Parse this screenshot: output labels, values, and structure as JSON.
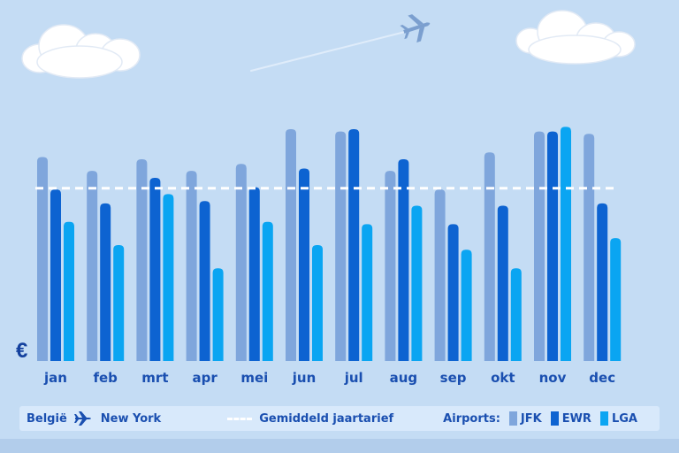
{
  "colors": {
    "background": "#c4dcf4",
    "average_line": "#ffffff",
    "JFK": "#7fa6dc",
    "EWR": "#0d63d1",
    "LGA": "#0aa5f2",
    "text": "#1a4fb0"
  },
  "currency_symbol": "€",
  "legend": {
    "origin": "België",
    "route_icon": "airplane-icon",
    "destination": "New York",
    "average_label": "Gemiddeld jaartarief",
    "airports_label": "Airports:",
    "airports": [
      "JFK",
      "EWR",
      "LGA"
    ]
  },
  "chart_data": {
    "type": "bar",
    "title": "",
    "xlabel": "",
    "ylabel": "€",
    "grid": false,
    "legend_position": "bottom",
    "categories": [
      "jan",
      "feb",
      "mrt",
      "apr",
      "mei",
      "jun",
      "jul",
      "aug",
      "sep",
      "okt",
      "nov",
      "dec"
    ],
    "ylim": [
      0,
      100
    ],
    "series": [
      {
        "name": "JFK",
        "values": [
          88,
          82,
          87,
          82,
          85,
          100,
          99,
          82,
          74,
          90,
          99,
          98
        ]
      },
      {
        "name": "EWR",
        "values": [
          74,
          68,
          79,
          69,
          75,
          83,
          100,
          87,
          59,
          67,
          99,
          68
        ]
      },
      {
        "name": "LGA",
        "values": [
          60,
          50,
          72,
          40,
          60,
          50,
          59,
          67,
          48,
          40,
          101,
          53
        ]
      }
    ],
    "average_line": {
      "name": "Gemiddeld jaartarief",
      "value": 74.5
    }
  }
}
